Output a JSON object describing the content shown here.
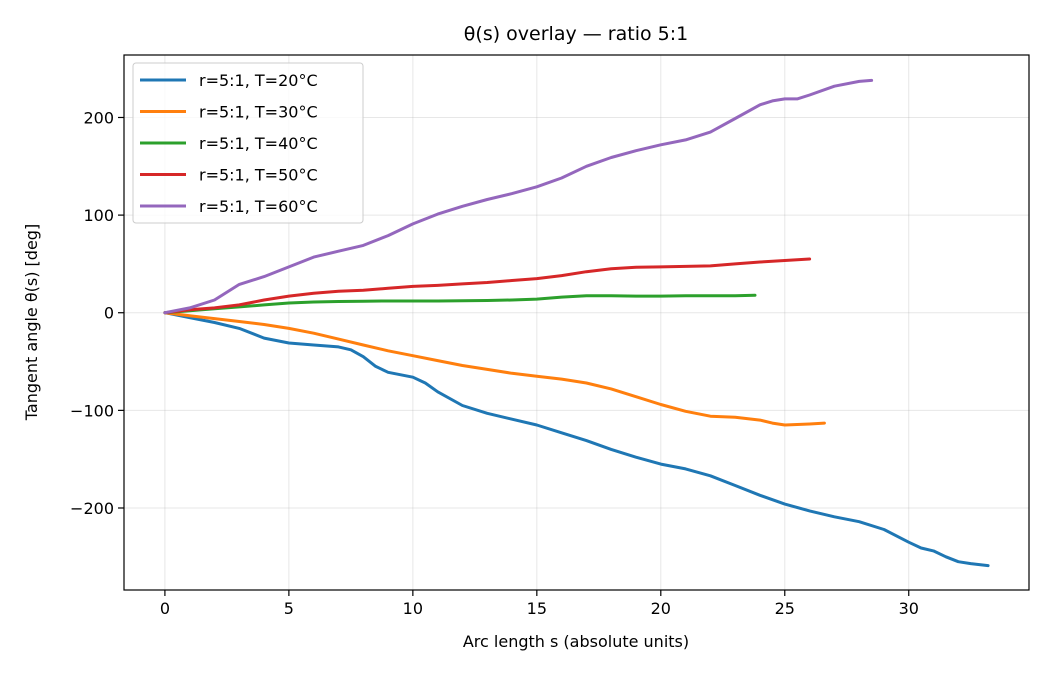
{
  "chart_data": {
    "type": "line",
    "title": "θ(s) overlay — ratio 5:1",
    "xlabel": "Arc length s (absolute units)",
    "ylabel": "Tangent angle θ(s) [deg]",
    "xlim": [
      -1.65,
      34.85
    ],
    "ylim": [
      -284,
      264
    ],
    "xticks": [
      0,
      5,
      10,
      15,
      20,
      25,
      30
    ],
    "yticks": [
      -200,
      -100,
      0,
      100,
      200
    ],
    "xtick_labels": [
      "0",
      "5",
      "10",
      "15",
      "20",
      "25",
      "30"
    ],
    "ytick_labels": [
      "−200",
      "−100",
      "0",
      "100",
      "200"
    ],
    "grid": true,
    "legend_position": "top-left",
    "series": [
      {
        "name": "r=5:1, T=20°C",
        "color": "#1f77b4",
        "x": [
          0,
          1,
          2,
          3,
          4,
          5,
          6,
          7,
          7.5,
          8,
          8.5,
          9,
          10,
          10.5,
          11,
          12,
          13,
          14,
          15,
          16,
          17,
          18,
          19,
          20,
          21,
          22,
          23,
          24,
          25,
          26,
          27,
          28,
          29,
          30,
          30.5,
          31,
          31.5,
          32,
          32.5,
          33.2
        ],
        "y": [
          0,
          -5,
          -10,
          -16,
          -26,
          -31,
          -33,
          -35,
          -38,
          -45,
          -55,
          -61,
          -66,
          -72,
          -81,
          -95,
          -103,
          -109,
          -115,
          -123,
          -131,
          -140,
          -148,
          -155,
          -160,
          -167,
          -177,
          -187,
          -196,
          -203,
          -209,
          -214,
          -222,
          -235,
          -241,
          -244,
          -250,
          -255,
          -257,
          -259
        ]
      },
      {
        "name": "r=5:1, T=30°C",
        "color": "#ff7f0e",
        "x": [
          0,
          1,
          2,
          3,
          4,
          5,
          6,
          7,
          8,
          9,
          10,
          11,
          12,
          13,
          14,
          15,
          16,
          17,
          18,
          19,
          20,
          21,
          22,
          23,
          24,
          24.5,
          25,
          26,
          26.6
        ],
        "y": [
          0,
          -3,
          -6,
          -9,
          -12,
          -16,
          -21,
          -27,
          -33,
          -39,
          -44,
          -49,
          -54,
          -58,
          -62,
          -65,
          -68,
          -72,
          -78,
          -86,
          -94,
          -101,
          -106,
          -107,
          -110,
          -113,
          -115,
          -114,
          -113
        ]
      },
      {
        "name": "r=5:1, T=40°C",
        "color": "#2ca02c",
        "x": [
          0,
          1,
          2,
          3,
          4,
          5,
          6,
          7,
          8,
          9,
          10,
          11,
          12,
          13,
          14,
          15,
          16,
          17,
          18,
          19,
          20,
          21,
          22,
          23,
          23.8
        ],
        "y": [
          0,
          2,
          4,
          6,
          8,
          10,
          11,
          11.5,
          11.8,
          12,
          12,
          12,
          12.2,
          12.5,
          13,
          14,
          16,
          17.5,
          17.5,
          17,
          17,
          17.5,
          17.5,
          17.5,
          18
        ]
      },
      {
        "name": "r=5:1, T=50°C",
        "color": "#d62728",
        "x": [
          0,
          1,
          2,
          3,
          4,
          5,
          6,
          7,
          8,
          9,
          10,
          11,
          12,
          13,
          14,
          15,
          16,
          17,
          18,
          19,
          20,
          21,
          22,
          23,
          24,
          25,
          26
        ],
        "y": [
          0,
          3,
          5,
          8,
          13,
          17,
          20,
          22,
          23,
          25,
          27,
          28,
          29.5,
          31,
          33,
          35,
          38,
          42,
          45,
          46.5,
          47,
          47.5,
          48,
          50,
          52,
          53.5,
          55
        ]
      },
      {
        "name": "r=5:1, T=60°C",
        "color": "#9467bd",
        "x": [
          0,
          1,
          2,
          3,
          4,
          5,
          6,
          7,
          8,
          9,
          10,
          11,
          12,
          13,
          14,
          15,
          16,
          17,
          18,
          19,
          20,
          21,
          22,
          23,
          24,
          24.5,
          25,
          25.5,
          26,
          27,
          28,
          28.5
        ],
        "y": [
          0,
          5,
          13,
          29,
          37,
          47,
          57,
          63,
          69,
          79,
          91,
          101,
          109,
          116,
          122,
          129,
          138,
          150,
          159,
          166,
          172,
          177,
          185,
          199,
          213,
          217,
          219,
          219,
          223,
          232,
          237,
          238
        ]
      }
    ]
  }
}
